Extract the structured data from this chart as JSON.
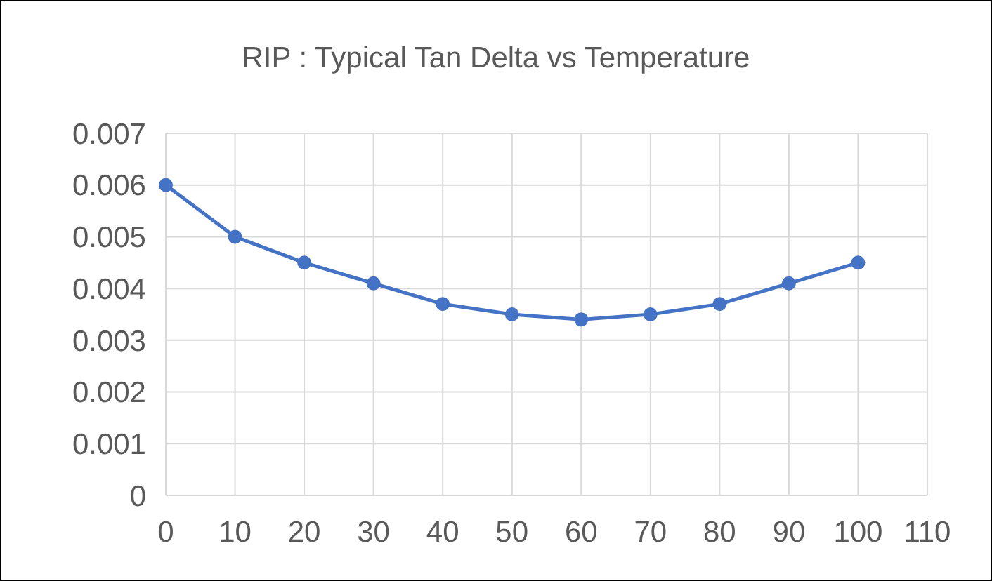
{
  "chart_data": {
    "type": "line",
    "title": "RIP : Typical Tan Delta vs Temperature",
    "x": [
      0,
      10,
      20,
      30,
      40,
      50,
      60,
      70,
      80,
      90,
      100
    ],
    "series": [
      {
        "color": "#4472c4",
        "values": [
          0.006,
          0.005,
          0.0045,
          0.0041,
          0.0037,
          0.0035,
          0.0034,
          0.0035,
          0.0037,
          0.0041,
          0.0045
        ]
      }
    ],
    "xlim": [
      0,
      110
    ],
    "xticks": [
      0,
      10,
      20,
      30,
      40,
      50,
      60,
      70,
      80,
      90,
      100,
      110
    ],
    "ylim": [
      0,
      0.007
    ],
    "yticks": [
      0,
      0.001,
      0.002,
      0.003,
      0.004,
      0.005,
      0.006,
      0.007
    ],
    "grid": true,
    "marker": "circle",
    "line_style": "solid"
  }
}
